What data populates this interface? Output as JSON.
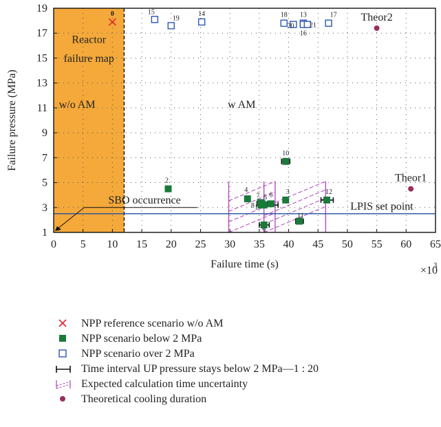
{
  "chart_data": {
    "type": "scatter",
    "xlabel": "Failure time (s)",
    "ylabel": "Failure pressure (MPa)",
    "x_multiplier": "×10",
    "x_multiplier_exp": "3",
    "xlim": [
      0,
      65
    ],
    "ylim": [
      1,
      19
    ],
    "x_ticks": [
      0,
      5,
      10,
      15,
      20,
      25,
      30,
      35,
      40,
      45,
      50,
      55,
      60,
      65
    ],
    "y_ticks": [
      1,
      3,
      5,
      7,
      9,
      11,
      13,
      15,
      17,
      19
    ],
    "grid": "dotted",
    "regions": {
      "reactor_failure_map": {
        "x": [
          0,
          12
        ],
        "y": [
          1,
          19
        ],
        "label_line1": "Reactor",
        "label_line2": "failure map",
        "color": "#f4a93a"
      },
      "wo_am_label": "w/o AM",
      "w_am_label": "w AM",
      "lpis_set_point": {
        "y": 2.5,
        "label": "LPIS set point",
        "color": "#1f4e9c"
      },
      "sbo_occurrence": {
        "label": "SBO occurrence",
        "x": 0,
        "y": 1
      }
    },
    "series": [
      {
        "name": "NPP reference scenario w/o AM",
        "marker": "x",
        "color": "#e0262f",
        "points": [
          {
            "label": "0",
            "x": 10,
            "y": 17.9
          }
        ]
      },
      {
        "name": "NPP scenario below 2 MPa",
        "marker": "filled-square",
        "color": "#1a7a3a",
        "points": [
          {
            "label": "2",
            "x": 19.5,
            "y": 4.5
          },
          {
            "label": "10",
            "x": 39.5,
            "y": 6.7
          },
          {
            "label": "4",
            "x": 33,
            "y": 3.7
          },
          {
            "label": "7",
            "x": 35.5,
            "y": 3.3
          },
          {
            "label": "5",
            "x": 35.8,
            "y": 3.2
          },
          {
            "label": "6",
            "x": 37,
            "y": 3.3
          },
          {
            "label": "3",
            "x": 39.5,
            "y": 3.6
          },
          {
            "label": "8",
            "x": 35.3,
            "y": 3.2
          },
          {
            "label": "1",
            "x": 35.2,
            "y": 3.4
          },
          {
            "label": "9",
            "x": 35.8,
            "y": 1.6
          },
          {
            "label": "11",
            "x": 41.8,
            "y": 1.9
          },
          {
            "label": "12",
            "x": 46.5,
            "y": 3.6
          }
        ]
      },
      {
        "name": "NPP scenario over 2 MPa",
        "marker": "open-square",
        "color": "#2a56b8",
        "points": [
          {
            "label": "15",
            "x": 17.2,
            "y": 18.1
          },
          {
            "label": "19",
            "x": 20,
            "y": 17.6
          },
          {
            "label": "14",
            "x": 25.2,
            "y": 17.9
          },
          {
            "label": "18",
            "x": 39.2,
            "y": 17.8
          },
          {
            "label": "20",
            "x": 40.8,
            "y": 17.7
          },
          {
            "label": "13",
            "x": 42.5,
            "y": 17.8
          },
          {
            "label": "16",
            "x": 42.5,
            "y": 17.7
          },
          {
            "label": "21",
            "x": 43.2,
            "y": 17.7
          },
          {
            "label": "17",
            "x": 46.8,
            "y": 17.8
          }
        ]
      },
      {
        "name": "Theoretical cooling duration",
        "marker": "dot",
        "color": "#9a2f5e",
        "points": [
          {
            "label": "Theor2",
            "x": 55,
            "y": 17.4
          },
          {
            "label": "Theor1",
            "x": 60.8,
            "y": 4.5
          }
        ]
      }
    ],
    "time_intervals": [
      {
        "x1": 38.8,
        "x2": 40.2,
        "y": 6.7
      },
      {
        "x1": 34.6,
        "x2": 36.4,
        "y": 3.3
      },
      {
        "x1": 36.3,
        "x2": 38.2,
        "y": 3.2
      },
      {
        "x1": 35,
        "x2": 36.7,
        "y": 1.6
      },
      {
        "x1": 41.2,
        "x2": 42.5,
        "y": 1.9
      },
      {
        "x1": 45.5,
        "x2": 47.6,
        "y": 3.6
      }
    ],
    "uncertainty_boxes": [
      {
        "x1": 29.8,
        "x2": 37.7,
        "y1": 1,
        "y2": 5.1
      },
      {
        "x1": 35.8,
        "x2": 46.3,
        "y1": 1,
        "y2": 5.1
      }
    ],
    "legend": [
      {
        "symbol": "x",
        "text": "NPP reference scenario w/o AM"
      },
      {
        "symbol": "filled-square",
        "text": "NPP scenario below 2 MPa"
      },
      {
        "symbol": "open-square",
        "text": "NPP scenario over 2 MPa"
      },
      {
        "symbol": "interval",
        "text": "Time interval UP pressure stays below 2 MPa—1 : 20"
      },
      {
        "symbol": "hatch",
        "text": "Expected calculation time uncertainty"
      },
      {
        "symbol": "dot",
        "text": "Theoretical cooling duration"
      }
    ]
  }
}
